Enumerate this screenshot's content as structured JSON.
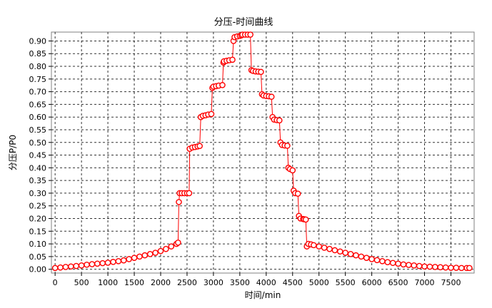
{
  "chart_data": {
    "type": "line",
    "title": "分压-时间曲线",
    "xlabel": "时间/min",
    "ylabel": "分压P/P0",
    "xlim": [
      -70,
      7940
    ],
    "ylim": [
      -0.015,
      0.935
    ],
    "x_ticks": [
      0,
      500,
      1000,
      1500,
      2000,
      2500,
      3000,
      3500,
      4000,
      4500,
      5000,
      5500,
      6000,
      6500,
      7000,
      7500
    ],
    "y_ticks": [
      0.0,
      0.05,
      0.1,
      0.15,
      0.2,
      0.25,
      0.3,
      0.35,
      0.4,
      0.45,
      0.5,
      0.55,
      0.6,
      0.65,
      0.7,
      0.75,
      0.8,
      0.85,
      0.9
    ],
    "y_tick_labels": [
      "0.00",
      "0.05",
      "0.10",
      "0.15",
      "0.20",
      "0.25",
      "0.30",
      "0.35",
      "0.40",
      "0.45",
      "0.50",
      "0.55",
      "0.60",
      "0.65",
      "0.70",
      "0.75",
      "0.80",
      "0.85",
      "0.90"
    ],
    "grid": true,
    "series": [
      {
        "color": "#ff0000",
        "marker": "open-circle",
        "x": [
          0,
          100,
          200,
          300,
          400,
          500,
          600,
          700,
          800,
          900,
          1000,
          1100,
          1200,
          1300,
          1400,
          1500,
          1600,
          1700,
          1800,
          1900,
          2000,
          2100,
          2200,
          2300,
          2330,
          2345,
          2360,
          2400,
          2450,
          2500,
          2540,
          2550,
          2600,
          2650,
          2700,
          2740,
          2760,
          2800,
          2850,
          2900,
          2960,
          2980,
          3000,
          3050,
          3100,
          3170,
          3190,
          3200,
          3250,
          3300,
          3360,
          3380,
          3400,
          3450,
          3500,
          3530,
          3550,
          3600,
          3650,
          3700,
          3720,
          3750,
          3800,
          3850,
          3900,
          3920,
          3950,
          4000,
          4050,
          4100,
          4120,
          4150,
          4200,
          4250,
          4270,
          4300,
          4350,
          4400,
          4420,
          4450,
          4500,
          4520,
          4550,
          4600,
          4620,
          4650,
          4700,
          4720,
          4750,
          4770,
          4800,
          4850,
          4900,
          5000,
          5100,
          5200,
          5300,
          5400,
          5500,
          5600,
          5700,
          5800,
          5900,
          6000,
          6100,
          6200,
          6300,
          6400,
          6500,
          6600,
          6700,
          6800,
          6900,
          7000,
          7100,
          7200,
          7300,
          7400,
          7500,
          7600,
          7700,
          7800,
          7850
        ],
        "y": [
          0.005,
          0.007,
          0.009,
          0.011,
          0.013,
          0.015,
          0.018,
          0.02,
          0.022,
          0.024,
          0.026,
          0.029,
          0.032,
          0.035,
          0.04,
          0.045,
          0.05,
          0.055,
          0.06,
          0.065,
          0.072,
          0.08,
          0.09,
          0.1,
          0.105,
          0.265,
          0.3,
          0.3,
          0.3,
          0.3,
          0.3,
          0.475,
          0.48,
          0.482,
          0.484,
          0.486,
          0.6,
          0.605,
          0.607,
          0.61,
          0.612,
          0.715,
          0.72,
          0.722,
          0.724,
          0.726,
          0.815,
          0.82,
          0.822,
          0.824,
          0.826,
          0.9,
          0.915,
          0.918,
          0.92,
          0.922,
          0.925,
          0.925,
          0.925,
          0.925,
          0.785,
          0.782,
          0.78,
          0.779,
          0.778,
          0.69,
          0.685,
          0.683,
          0.682,
          0.68,
          0.6,
          0.59,
          0.588,
          0.587,
          0.5,
          0.49,
          0.488,
          0.487,
          0.4,
          0.395,
          0.39,
          0.31,
          0.3,
          0.298,
          0.21,
          0.2,
          0.198,
          0.197,
          0.196,
          0.09,
          0.1,
          0.098,
          0.095,
          0.09,
          0.085,
          0.08,
          0.075,
          0.07,
          0.065,
          0.06,
          0.055,
          0.05,
          0.045,
          0.04,
          0.036,
          0.032,
          0.028,
          0.025,
          0.022,
          0.019,
          0.017,
          0.015,
          0.013,
          0.011,
          0.01,
          0.009,
          0.008,
          0.007,
          0.006,
          0.006,
          0.005,
          0.005,
          0.005
        ]
      }
    ]
  }
}
